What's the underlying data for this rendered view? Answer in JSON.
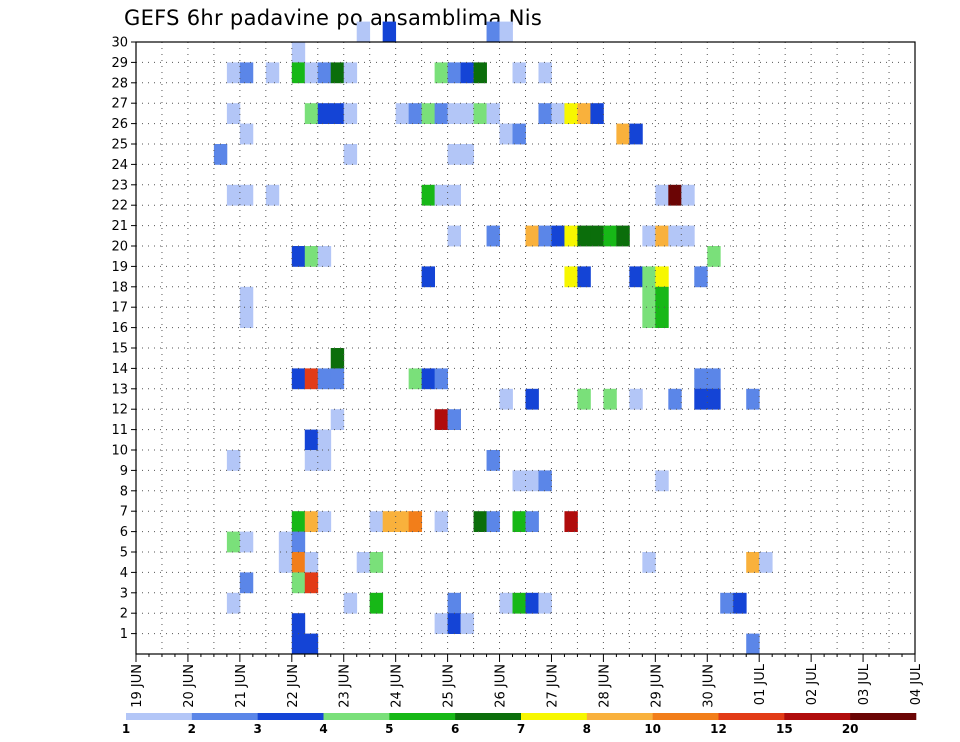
{
  "chart_data": {
    "type": "heatmap",
    "title": "GEFS 6hr padavine po ansamblima Nis",
    "ylim": [
      0,
      30
    ],
    "y_ticks": [
      "1",
      "2",
      "3",
      "4",
      "5",
      "6",
      "7",
      "8",
      "9",
      "10",
      "11",
      "12",
      "13",
      "14",
      "15",
      "16",
      "17",
      "18",
      "19",
      "20",
      "21",
      "22",
      "23",
      "24",
      "25",
      "26",
      "27",
      "28",
      "29",
      "30"
    ],
    "x_ticks": [
      "19 JUN",
      "20 JUN",
      "21 JUN",
      "22 JUN",
      "23 JUN",
      "24 JUN",
      "25 JUN",
      "26 JUN",
      "27 JUN",
      "28 JUN",
      "29 JUN",
      "30 JUN",
      "01 JUL",
      "02 JUL",
      "03 JUL",
      "04 JUL"
    ],
    "x_unit": "6-hour steps from 19 JUN 00Z",
    "grid": true,
    "colorbar": {
      "labels": [
        "1",
        "2",
        "3",
        "4",
        "5",
        "6",
        "7",
        "8",
        "10",
        "12",
        "15",
        "20"
      ],
      "colors": [
        "#b3c6f7",
        "#5b86e8",
        "#1444d6",
        "#7ae07a",
        "#17b817",
        "#0b6e0b",
        "#f7f700",
        "#f9b13c",
        "#f27e1a",
        "#e23b17",
        "#b00c0c",
        "#6b0505"
      ]
    },
    "cells": [
      [
        30,
        17,
        1
      ],
      [
        30,
        19,
        3
      ],
      [
        30,
        27,
        2
      ],
      [
        30,
        28,
        1
      ],
      [
        29,
        12,
        1
      ],
      [
        28,
        7,
        1
      ],
      [
        28,
        8,
        2
      ],
      [
        28,
        10,
        1
      ],
      [
        28,
        12,
        5
      ],
      [
        28,
        13,
        1
      ],
      [
        28,
        14,
        2
      ],
      [
        28,
        15,
        6
      ],
      [
        28,
        16,
        1
      ],
      [
        28,
        23,
        4
      ],
      [
        28,
        24,
        2
      ],
      [
        28,
        25,
        3
      ],
      [
        28,
        26,
        6
      ],
      [
        28,
        29,
        1
      ],
      [
        28,
        31,
        1
      ],
      [
        26,
        7,
        1
      ],
      [
        26,
        13,
        4
      ],
      [
        26,
        14,
        3
      ],
      [
        26,
        15,
        3
      ],
      [
        26,
        16,
        1
      ],
      [
        26,
        20,
        1
      ],
      [
        26,
        21,
        2
      ],
      [
        26,
        22,
        4
      ],
      [
        26,
        23,
        2
      ],
      [
        26,
        24,
        1
      ],
      [
        26,
        25,
        1
      ],
      [
        26,
        26,
        4
      ],
      [
        26,
        27,
        1
      ],
      [
        26,
        31,
        2
      ],
      [
        26,
        32,
        1
      ],
      [
        26,
        33,
        7
      ],
      [
        26,
        34,
        8
      ],
      [
        26,
        35,
        3
      ],
      [
        25,
        8,
        1
      ],
      [
        25,
        28,
        1
      ],
      [
        25,
        29,
        2
      ],
      [
        25,
        37,
        8
      ],
      [
        25,
        38,
        3
      ],
      [
        24,
        6,
        2
      ],
      [
        24,
        16,
        1
      ],
      [
        24,
        24,
        1
      ],
      [
        24,
        25,
        1
      ],
      [
        22,
        7,
        1
      ],
      [
        22,
        8,
        1
      ],
      [
        22,
        10,
        1
      ],
      [
        22,
        22,
        5
      ],
      [
        22,
        23,
        1
      ],
      [
        22,
        24,
        1
      ],
      [
        22,
        40,
        1
      ],
      [
        22,
        41,
        12
      ],
      [
        22,
        42,
        1
      ],
      [
        20,
        24,
        1
      ],
      [
        20,
        27,
        2
      ],
      [
        20,
        30,
        8
      ],
      [
        20,
        31,
        2
      ],
      [
        20,
        32,
        3
      ],
      [
        20,
        33,
        7
      ],
      [
        20,
        34,
        6
      ],
      [
        20,
        35,
        6
      ],
      [
        20,
        36,
        5
      ],
      [
        20,
        37,
        6
      ],
      [
        20,
        39,
        1
      ],
      [
        20,
        40,
        8
      ],
      [
        20,
        41,
        1
      ],
      [
        20,
        42,
        1
      ],
      [
        19,
        12,
        3
      ],
      [
        19,
        13,
        4
      ],
      [
        19,
        14,
        1
      ],
      [
        19,
        44,
        4
      ],
      [
        18,
        22,
        3
      ],
      [
        18,
        33,
        7
      ],
      [
        18,
        34,
        3
      ],
      [
        18,
        38,
        3
      ],
      [
        18,
        39,
        4
      ],
      [
        18,
        40,
        7
      ],
      [
        18,
        43,
        2
      ],
      [
        17,
        8,
        1
      ],
      [
        17,
        39,
        4
      ],
      [
        17,
        40,
        5
      ],
      [
        16,
        8,
        1
      ],
      [
        16,
        39,
        4
      ],
      [
        16,
        40,
        5
      ],
      [
        14,
        15,
        6
      ],
      [
        13,
        12,
        3
      ],
      [
        13,
        13,
        10
      ],
      [
        13,
        14,
        2
      ],
      [
        13,
        15,
        2
      ],
      [
        13,
        21,
        4
      ],
      [
        13,
        22,
        3
      ],
      [
        13,
        23,
        2
      ],
      [
        13,
        43,
        2
      ],
      [
        13,
        44,
        2
      ],
      [
        12,
        28,
        1
      ],
      [
        12,
        30,
        3
      ],
      [
        12,
        34,
        4
      ],
      [
        12,
        36,
        4
      ],
      [
        12,
        38,
        1
      ],
      [
        12,
        41,
        2
      ],
      [
        12,
        43,
        3
      ],
      [
        12,
        44,
        3
      ],
      [
        12,
        47,
        2
      ],
      [
        11,
        15,
        1
      ],
      [
        11,
        23,
        11
      ],
      [
        11,
        24,
        2
      ],
      [
        10,
        13,
        3
      ],
      [
        10,
        14,
        1
      ],
      [
        9,
        7,
        1
      ],
      [
        9,
        13,
        1
      ],
      [
        9,
        14,
        1
      ],
      [
        9,
        27,
        2
      ],
      [
        8,
        29,
        1
      ],
      [
        8,
        30,
        1
      ],
      [
        8,
        31,
        2
      ],
      [
        8,
        40,
        1
      ],
      [
        6,
        12,
        5
      ],
      [
        6,
        13,
        8
      ],
      [
        6,
        14,
        1
      ],
      [
        6,
        18,
        1
      ],
      [
        6,
        19,
        8
      ],
      [
        6,
        20,
        8
      ],
      [
        6,
        21,
        9
      ],
      [
        6,
        23,
        1
      ],
      [
        6,
        26,
        6
      ],
      [
        6,
        27,
        2
      ],
      [
        6,
        29,
        5
      ],
      [
        6,
        30,
        2
      ],
      [
        6,
        33,
        11
      ],
      [
        5,
        7,
        4
      ],
      [
        5,
        8,
        1
      ],
      [
        5,
        11,
        1
      ],
      [
        5,
        12,
        2
      ],
      [
        4,
        11,
        1
      ],
      [
        4,
        12,
        9
      ],
      [
        4,
        13,
        1
      ],
      [
        4,
        17,
        1
      ],
      [
        4,
        18,
        4
      ],
      [
        4,
        39,
        1
      ],
      [
        4,
        47,
        8
      ],
      [
        4,
        48,
        1
      ],
      [
        3,
        8,
        2
      ],
      [
        3,
        12,
        4
      ],
      [
        3,
        13,
        10
      ],
      [
        2,
        7,
        1
      ],
      [
        2,
        16,
        1
      ],
      [
        2,
        18,
        5
      ],
      [
        2,
        24,
        2
      ],
      [
        2,
        28,
        1
      ],
      [
        2,
        29,
        5
      ],
      [
        2,
        30,
        3
      ],
      [
        2,
        31,
        1
      ],
      [
        2,
        45,
        2
      ],
      [
        2,
        46,
        3
      ],
      [
        1,
        12,
        3
      ],
      [
        1,
        23,
        1
      ],
      [
        1,
        24,
        3
      ],
      [
        1,
        25,
        1
      ],
      [
        0,
        12,
        3
      ],
      [
        0,
        13,
        3
      ],
      [
        0,
        47,
        2
      ]
    ]
  }
}
